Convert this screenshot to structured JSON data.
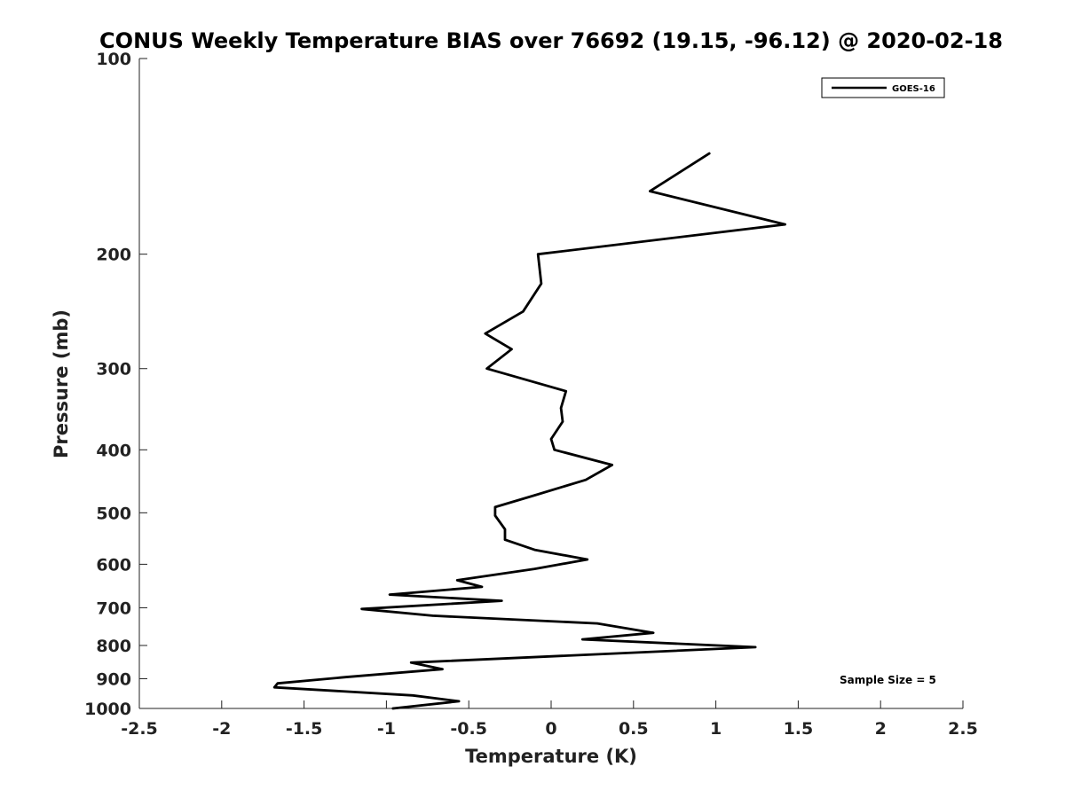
{
  "chart_data": {
    "type": "line",
    "title": "CONUS Weekly Temperature BIAS over 76692 (19.15, -96.12) @ 2020-02-18",
    "xlabel": "Temperature (K)",
    "ylabel": "Pressure (mb)",
    "xlim": [
      -2.5,
      2.5
    ],
    "ylim": [
      100,
      1000
    ],
    "yscale": "log",
    "y_reversed": true,
    "grid": false,
    "legend_position": "top-right",
    "x_ticks": [
      "-2.5",
      "-2",
      "-1.5",
      "-1",
      "-0.5",
      "0",
      "0.5",
      "1",
      "1.5",
      "2",
      "2.5"
    ],
    "y_ticks": [
      "100",
      "200",
      "300",
      "400",
      "500",
      "600",
      "700",
      "800",
      "900",
      "1000"
    ],
    "annotation": "Sample Size = 5",
    "series": [
      {
        "name": "GOES-16",
        "color": "#000000",
        "points": [
          {
            "x": 0.96,
            "p": 140
          },
          {
            "x": 0.6,
            "p": 160
          },
          {
            "x": 1.42,
            "p": 180
          },
          {
            "x": -0.08,
            "p": 200
          },
          {
            "x": -0.06,
            "p": 222
          },
          {
            "x": -0.17,
            "p": 245
          },
          {
            "x": -0.4,
            "p": 265
          },
          {
            "x": -0.24,
            "p": 280
          },
          {
            "x": -0.39,
            "p": 300
          },
          {
            "x": 0.09,
            "p": 325
          },
          {
            "x": 0.06,
            "p": 345
          },
          {
            "x": 0.07,
            "p": 362
          },
          {
            "x": 0.0,
            "p": 385
          },
          {
            "x": 0.02,
            "p": 400
          },
          {
            "x": 0.37,
            "p": 422
          },
          {
            "x": 0.21,
            "p": 445
          },
          {
            "x": -0.1,
            "p": 470
          },
          {
            "x": -0.34,
            "p": 490
          },
          {
            "x": -0.34,
            "p": 505
          },
          {
            "x": -0.28,
            "p": 530
          },
          {
            "x": -0.28,
            "p": 550
          },
          {
            "x": -0.1,
            "p": 570
          },
          {
            "x": 0.22,
            "p": 590
          },
          {
            "x": -0.1,
            "p": 610
          },
          {
            "x": -0.57,
            "p": 635
          },
          {
            "x": -0.42,
            "p": 650
          },
          {
            "x": -0.98,
            "p": 668
          },
          {
            "x": -0.3,
            "p": 683
          },
          {
            "x": -1.15,
            "p": 703
          },
          {
            "x": -0.72,
            "p": 720
          },
          {
            "x": 0.28,
            "p": 740
          },
          {
            "x": 0.62,
            "p": 765
          },
          {
            "x": 0.19,
            "p": 783
          },
          {
            "x": 1.24,
            "p": 805
          },
          {
            "x": -0.85,
            "p": 850
          },
          {
            "x": -0.66,
            "p": 870
          },
          {
            "x": -1.25,
            "p": 895
          },
          {
            "x": -1.66,
            "p": 915
          },
          {
            "x": -1.68,
            "p": 928
          },
          {
            "x": -0.84,
            "p": 955
          },
          {
            "x": -0.56,
            "p": 975
          },
          {
            "x": -0.96,
            "p": 1000
          }
        ]
      }
    ]
  }
}
